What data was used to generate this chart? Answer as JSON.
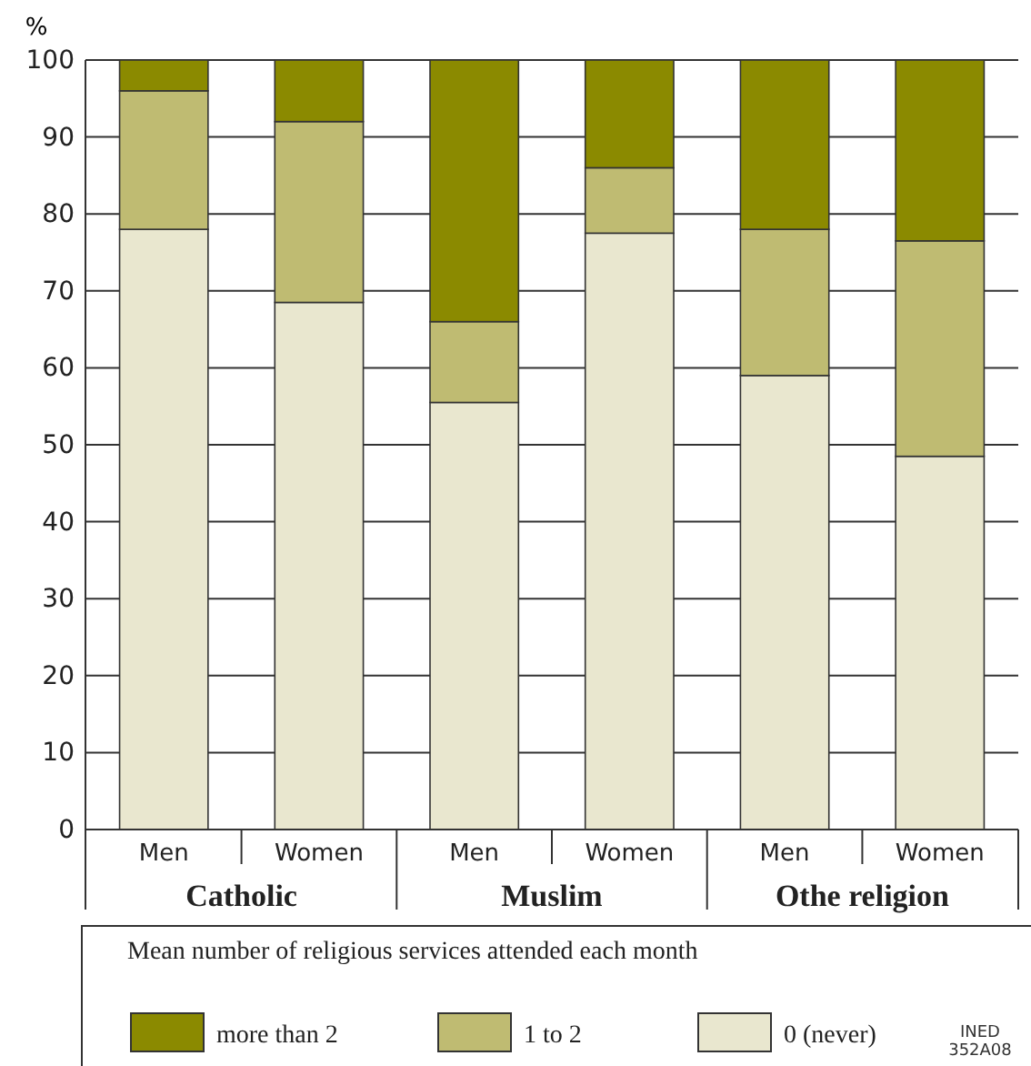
{
  "chart_data": {
    "type": "bar",
    "stacked": true,
    "ylabel": "%",
    "categories": [
      "Men",
      "Women",
      "Men",
      "Women",
      "Men",
      "Women"
    ],
    "series": [
      {
        "name": "0 (never)",
        "color": "#e9e7cf",
        "values": [
          78,
          68.5,
          55.5,
          77.5,
          59,
          48.5
        ]
      },
      {
        "name": "1 to 2",
        "color": "#bfbb72",
        "values": [
          18,
          23.5,
          10.5,
          8.5,
          19,
          28
        ]
      },
      {
        "name": "more than 2",
        "color": "#8b8a00",
        "values": [
          4,
          8,
          34,
          14,
          22,
          23.5
        ]
      }
    ],
    "ylim": [
      0,
      100
    ],
    "yticks": [
      0,
      10,
      20,
      30,
      40,
      50,
      60,
      70,
      80,
      90,
      100
    ],
    "grid": "y",
    "legend": "bottom",
    "legend_title": "Mean number of religious services attended each month",
    "annotations": [
      "Catholic",
      "Muslim",
      "Othe religion",
      "INED\n352A08"
    ]
  }
}
